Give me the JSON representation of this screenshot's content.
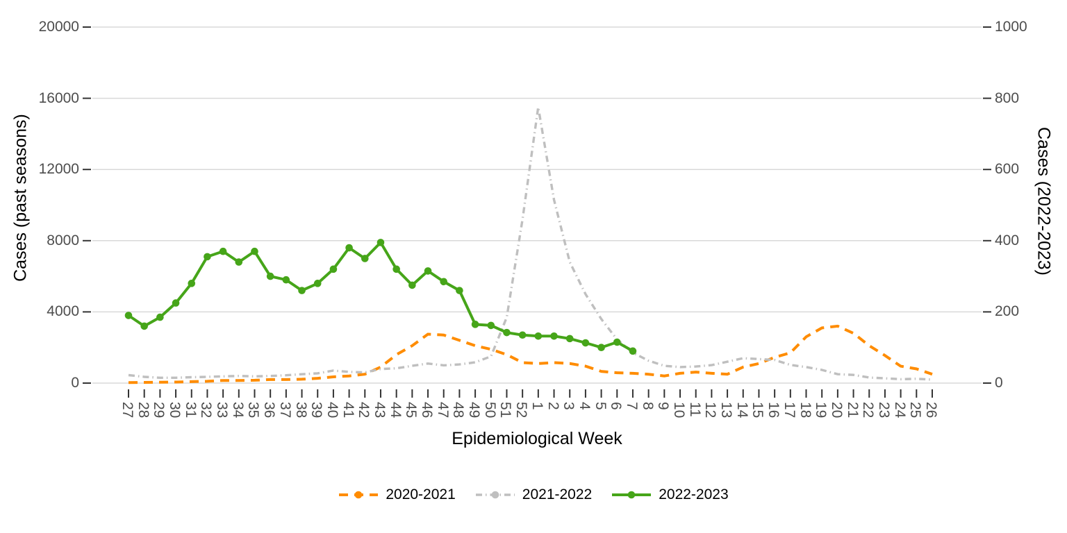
{
  "figure": {
    "x_axis": {
      "title": "Epidemiological Week"
    },
    "y_axis_left": {
      "title": "Cases (past seasons)"
    },
    "y_axis_right": {
      "title": "Cases (2022-2023)"
    }
  },
  "chart_data": {
    "type": "line",
    "title": "",
    "xlabel": "Epidemiological Week",
    "ylabel_left": "Cases (past seasons)",
    "ylabel_right": "Cases (2022-2023)",
    "grid": "horizontal",
    "legend_position": "bottom",
    "categories": [
      "27",
      "28",
      "29",
      "30",
      "31",
      "32",
      "33",
      "34",
      "35",
      "36",
      "37",
      "38",
      "39",
      "40",
      "41",
      "42",
      "43",
      "44",
      "45",
      "46",
      "47",
      "48",
      "49",
      "50",
      "51",
      "52",
      "1",
      "2",
      "3",
      "4",
      "5",
      "6",
      "7",
      "8",
      "9",
      "10",
      "11",
      "12",
      "13",
      "14",
      "15",
      "16",
      "17",
      "18",
      "19",
      "20",
      "21",
      "22",
      "23",
      "24",
      "25",
      "26"
    ],
    "y_left": {
      "ticks": [
        0,
        4000,
        8000,
        12000,
        16000,
        20000
      ],
      "range": [
        0,
        20000
      ]
    },
    "y_right": {
      "ticks": [
        0,
        200,
        400,
        600,
        800,
        1000
      ],
      "range": [
        0,
        1000
      ]
    },
    "series": [
      {
        "name": "2020-2021",
        "axis": "left",
        "color": "#ff8c00",
        "line_style": "dashed",
        "markers": false,
        "values": [
          30,
          40,
          50,
          60,
          80,
          100,
          150,
          150,
          160,
          200,
          200,
          220,
          270,
          350,
          400,
          500,
          900,
          1600,
          2100,
          2750,
          2700,
          2400,
          2100,
          1900,
          1600,
          1150,
          1100,
          1150,
          1100,
          950,
          660,
          580,
          550,
          500,
          400,
          550,
          620,
          550,
          500,
          900,
          1100,
          1450,
          1700,
          2600,
          3100,
          3200,
          2800,
          2100,
          1550,
          950,
          800,
          500
        ]
      },
      {
        "name": "2021-2022",
        "axis": "left",
        "color": "#bfbfbf",
        "line_style": "dashdot",
        "markers": false,
        "values": [
          450,
          350,
          300,
          300,
          330,
          350,
          380,
          400,
          380,
          400,
          440,
          500,
          550,
          700,
          630,
          600,
          790,
          830,
          970,
          1100,
          1000,
          1050,
          1170,
          1500,
          3700,
          9200,
          15500,
          10300,
          6800,
          5000,
          3600,
          2450,
          1710,
          1260,
          970,
          900,
          930,
          1010,
          1200,
          1400,
          1350,
          1300,
          1020,
          900,
          740,
          500,
          460,
          310,
          270,
          220,
          240,
          195
        ]
      },
      {
        "name": "2022-2023",
        "axis": "right",
        "color": "#46a519",
        "line_style": "solid",
        "markers": true,
        "values": [
          190,
          160,
          185,
          225,
          280,
          355,
          370,
          340,
          370,
          300,
          290,
          260,
          280,
          320,
          380,
          350,
          395,
          320,
          275,
          315,
          285,
          260,
          165,
          162,
          142,
          135,
          132,
          132,
          125,
          113,
          100,
          115,
          90,
          null,
          null,
          null,
          null,
          null,
          null,
          null,
          null,
          null,
          null,
          null,
          null,
          null,
          null,
          null,
          null,
          null,
          null,
          null
        ]
      }
    ],
    "colors": {
      "grid": "#d9d9d9",
      "tick_mark": "#333333",
      "tick_text": "#4d4d4d",
      "axis_title": "#000000",
      "background": "#ffffff"
    }
  }
}
